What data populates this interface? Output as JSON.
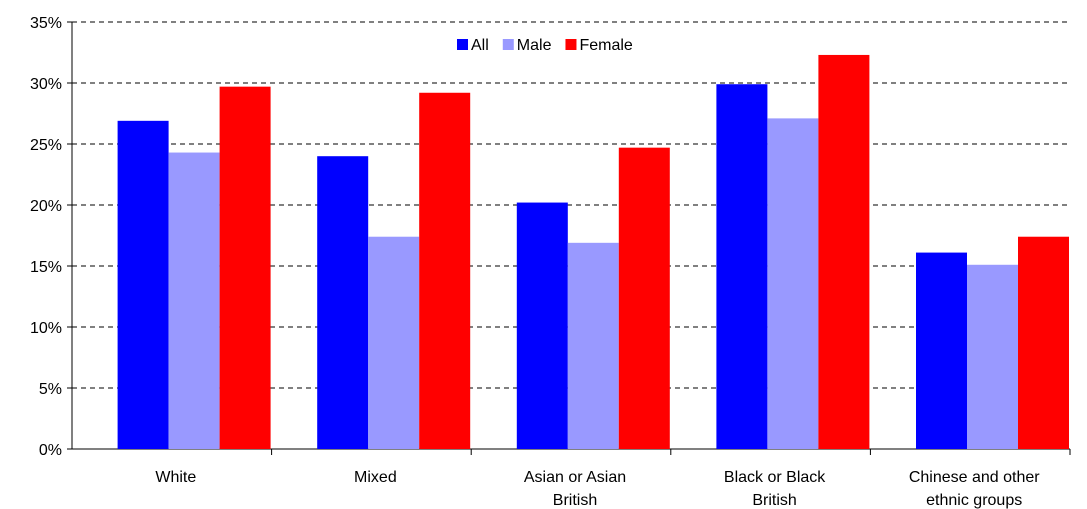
{
  "chart_data": {
    "type": "bar",
    "title": "",
    "xlabel": "",
    "ylabel": "",
    "ylim": [
      0,
      35
    ],
    "y_ticks": [
      "0%",
      "5%",
      "10%",
      "15%",
      "20%",
      "25%",
      "30%",
      "35%"
    ],
    "grid": "dashed horizontal",
    "legend_position": "top-center",
    "categories": [
      [
        "White"
      ],
      [
        "Mixed"
      ],
      [
        "Asian or Asian",
        "British"
      ],
      [
        "Black or Black",
        "British"
      ],
      [
        "Chinese and other",
        "ethnic groups"
      ]
    ],
    "series": [
      {
        "name": "All",
        "color": "#0000FF",
        "values": [
          26.9,
          24.0,
          20.2,
          29.9,
          16.1
        ]
      },
      {
        "name": "Male",
        "color": "#9999FF",
        "values": [
          24.3,
          17.4,
          16.9,
          27.1,
          15.1
        ]
      },
      {
        "name": "Female",
        "color": "#FF0000",
        "values": [
          29.7,
          29.2,
          24.7,
          32.3,
          17.4
        ]
      }
    ]
  }
}
